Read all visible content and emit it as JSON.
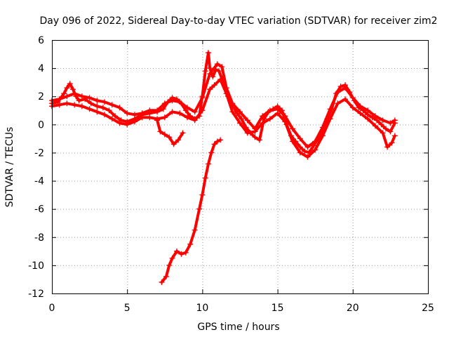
{
  "chart_data": {
    "type": "scatter",
    "title": "Day 096 of 2022, Sidereal Day-to-day VTEC variation (SDTVAR) for receiver zim2",
    "xlabel": "GPS time / hours",
    "ylabel": "SDTVAR / TECUs",
    "xlim": [
      0,
      25
    ],
    "ylim": [
      -12,
      6
    ],
    "xticks": [
      0,
      5,
      10,
      15,
      20,
      25
    ],
    "yticks": [
      -12,
      -10,
      -8,
      -6,
      -4,
      -2,
      0,
      2,
      4,
      6
    ],
    "grid": true,
    "marker": "plus",
    "color": "#ff0000",
    "series": [
      {
        "name": "main",
        "points": [
          [
            0.0,
            1.5
          ],
          [
            0.4,
            1.6
          ],
          [
            0.8,
            2.2
          ],
          [
            1.0,
            2.6
          ],
          [
            1.2,
            2.9
          ],
          [
            1.4,
            2.5
          ],
          [
            1.6,
            2.0
          ],
          [
            1.8,
            1.7
          ],
          [
            2.2,
            1.8
          ],
          [
            2.6,
            1.5
          ],
          [
            3.0,
            1.3
          ],
          [
            3.4,
            1.2
          ],
          [
            3.8,
            1.0
          ],
          [
            4.2,
            0.6
          ],
          [
            4.6,
            0.3
          ],
          [
            5.0,
            0.2
          ],
          [
            5.5,
            0.4
          ],
          [
            6.0,
            0.7
          ],
          [
            6.5,
            0.8
          ],
          [
            7.0,
            0.9
          ],
          [
            7.4,
            1.1
          ],
          [
            7.7,
            1.6
          ],
          [
            8.0,
            1.9
          ],
          [
            8.3,
            1.8
          ],
          [
            8.6,
            1.5
          ],
          [
            8.9,
            1.0
          ],
          [
            9.2,
            0.6
          ],
          [
            9.5,
            0.4
          ],
          [
            9.8,
            0.6
          ],
          [
            10.0,
            2.0
          ],
          [
            10.2,
            3.8
          ],
          [
            10.4,
            5.1
          ],
          [
            10.5,
            4.0
          ],
          [
            10.7,
            3.4
          ],
          [
            10.9,
            3.9
          ],
          [
            11.1,
            3.8
          ],
          [
            11.4,
            3.0
          ],
          [
            11.7,
            2.0
          ],
          [
            12.0,
            1.4
          ],
          [
            12.3,
            0.8
          ],
          [
            12.6,
            0.4
          ],
          [
            12.9,
            -0.2
          ],
          [
            13.2,
            -0.6
          ],
          [
            13.5,
            -0.9
          ],
          [
            13.8,
            -1.1
          ],
          [
            14.1,
            0.4
          ],
          [
            14.4,
            0.9
          ],
          [
            14.7,
            1.1
          ],
          [
            15.0,
            1.3
          ],
          [
            15.3,
            1.0
          ],
          [
            15.6,
            0.0
          ],
          [
            15.9,
            -0.8
          ],
          [
            16.2,
            -1.2
          ],
          [
            16.5,
            -1.6
          ],
          [
            16.8,
            -1.9
          ],
          [
            17.1,
            -2.0
          ],
          [
            17.4,
            -1.5
          ],
          [
            17.7,
            -1.0
          ],
          [
            18.0,
            -0.5
          ],
          [
            18.3,
            0.4
          ],
          [
            18.6,
            1.1
          ],
          [
            18.9,
            2.2
          ],
          [
            19.2,
            2.7
          ],
          [
            19.5,
            2.8
          ],
          [
            19.8,
            2.3
          ],
          [
            20.1,
            1.7
          ],
          [
            20.4,
            1.2
          ],
          [
            20.7,
            1.0
          ],
          [
            21.0,
            0.7
          ],
          [
            21.3,
            0.5
          ],
          [
            21.6,
            0.3
          ],
          [
            21.9,
            0.0
          ],
          [
            22.2,
            -0.3
          ],
          [
            22.5,
            -0.5
          ],
          [
            22.8,
            0.1
          ]
        ]
      },
      {
        "name": "upper-band",
        "points": [
          [
            0.0,
            1.7
          ],
          [
            0.5,
            1.8
          ],
          [
            1.0,
            2.0
          ],
          [
            1.5,
            2.2
          ],
          [
            2.0,
            2.0
          ],
          [
            2.5,
            1.9
          ],
          [
            3.0,
            1.7
          ],
          [
            3.5,
            1.6
          ],
          [
            4.0,
            1.4
          ],
          [
            4.5,
            1.2
          ],
          [
            5.0,
            0.8
          ],
          [
            5.5,
            0.7
          ],
          [
            6.0,
            0.8
          ],
          [
            6.5,
            1.0
          ],
          [
            7.0,
            1.0
          ],
          [
            7.5,
            1.5
          ],
          [
            8.0,
            1.7
          ],
          [
            8.5,
            1.6
          ],
          [
            9.0,
            1.2
          ],
          [
            9.5,
            0.9
          ],
          [
            10.0,
            1.9
          ],
          [
            10.5,
            3.6
          ],
          [
            11.0,
            4.3
          ],
          [
            11.3,
            4.1
          ],
          [
            11.6,
            2.6
          ],
          [
            12.0,
            1.5
          ],
          [
            12.5,
            0.9
          ],
          [
            13.0,
            0.3
          ],
          [
            13.5,
            -0.3
          ],
          [
            14.0,
            0.6
          ],
          [
            14.5,
            1.0
          ],
          [
            15.0,
            1.1
          ],
          [
            15.5,
            0.6
          ],
          [
            16.0,
            -0.3
          ],
          [
            16.5,
            -1.0
          ],
          [
            17.0,
            -1.6
          ],
          [
            17.5,
            -1.2
          ],
          [
            18.0,
            -0.2
          ],
          [
            18.5,
            1.1
          ],
          [
            19.0,
            2.3
          ],
          [
            19.5,
            2.6
          ],
          [
            20.0,
            1.9
          ],
          [
            20.5,
            1.3
          ],
          [
            21.0,
            1.0
          ],
          [
            21.5,
            0.6
          ],
          [
            22.0,
            0.3
          ],
          [
            22.5,
            0.1
          ],
          [
            22.8,
            0.3
          ]
        ]
      },
      {
        "name": "lower-band",
        "points": [
          [
            0.0,
            1.3
          ],
          [
            0.5,
            1.4
          ],
          [
            1.0,
            1.5
          ],
          [
            1.5,
            1.4
          ],
          [
            2.0,
            1.3
          ],
          [
            2.5,
            1.1
          ],
          [
            3.0,
            0.9
          ],
          [
            3.5,
            0.7
          ],
          [
            4.0,
            0.4
          ],
          [
            4.5,
            0.1
          ],
          [
            5.0,
            0.0
          ],
          [
            5.5,
            0.2
          ],
          [
            6.0,
            0.5
          ],
          [
            6.5,
            0.5
          ],
          [
            7.0,
            0.4
          ],
          [
            7.5,
            0.5
          ],
          [
            8.0,
            0.9
          ],
          [
            8.5,
            0.8
          ],
          [
            9.0,
            0.5
          ],
          [
            9.5,
            0.3
          ],
          [
            10.0,
            1.0
          ],
          [
            10.5,
            2.5
          ],
          [
            10.8,
            2.8
          ],
          [
            11.2,
            3.2
          ],
          [
            11.6,
            2.2
          ],
          [
            12.0,
            0.9
          ],
          [
            12.5,
            0.1
          ],
          [
            13.0,
            -0.6
          ],
          [
            13.5,
            -0.5
          ],
          [
            14.0,
            0.1
          ],
          [
            14.5,
            0.4
          ],
          [
            15.0,
            0.8
          ],
          [
            15.5,
            0.2
          ],
          [
            16.0,
            -1.2
          ],
          [
            16.5,
            -2.0
          ],
          [
            17.0,
            -2.3
          ],
          [
            17.5,
            -1.8
          ],
          [
            18.0,
            -0.8
          ],
          [
            18.5,
            0.4
          ],
          [
            19.0,
            1.5
          ],
          [
            19.5,
            1.8
          ],
          [
            20.0,
            1.2
          ],
          [
            20.5,
            0.8
          ],
          [
            21.0,
            0.4
          ],
          [
            21.5,
            -0.1
          ],
          [
            22.0,
            -0.6
          ],
          [
            22.3,
            -1.6
          ],
          [
            22.6,
            -1.3
          ],
          [
            22.8,
            -0.8
          ]
        ]
      },
      {
        "name": "dip-7h",
        "points": [
          [
            7.0,
            0.3
          ],
          [
            7.2,
            -0.5
          ],
          [
            7.5,
            -0.7
          ],
          [
            7.8,
            -0.9
          ],
          [
            8.1,
            -1.4
          ],
          [
            8.4,
            -1.1
          ],
          [
            8.7,
            -0.6
          ]
        ]
      },
      {
        "name": "deep-excursion",
        "points": [
          [
            7.3,
            -11.2
          ],
          [
            7.6,
            -10.8
          ],
          [
            7.8,
            -10.0
          ],
          [
            8.0,
            -9.5
          ],
          [
            8.3,
            -9.0
          ],
          [
            8.6,
            -9.2
          ],
          [
            8.9,
            -9.1
          ],
          [
            9.2,
            -8.5
          ],
          [
            9.5,
            -7.5
          ],
          [
            9.8,
            -6.0
          ],
          [
            10.0,
            -5.0
          ],
          [
            10.2,
            -3.8
          ],
          [
            10.4,
            -2.8
          ],
          [
            10.6,
            -2.0
          ],
          [
            10.8,
            -1.4
          ],
          [
            11.0,
            -1.2
          ],
          [
            11.2,
            -1.1
          ]
        ]
      }
    ]
  }
}
